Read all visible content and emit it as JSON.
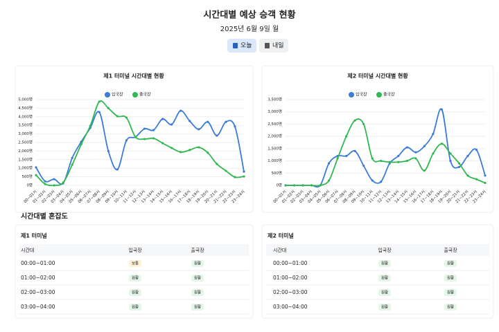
{
  "header": {
    "title": "시간대별 예상 승객 현황",
    "date": "2025년 6월 9일 월",
    "buttons": [
      "오늘",
      "내일"
    ]
  },
  "chart_data": [
    {
      "type": "line",
      "title": "제1 터미널 시간대별 현황",
      "categories": [
        "00~01시",
        "01~02시",
        "02~03시",
        "03~04시",
        "04~05시",
        "05~06시",
        "06~07시",
        "07~08시",
        "08~09시",
        "09~10시",
        "10~11시",
        "11~12시",
        "12~13시",
        "13~14시",
        "14~15시",
        "15~16시",
        "16~17시",
        "17~18시",
        "18~19시",
        "19~20시",
        "20~21시",
        "21~22시",
        "22~23시",
        "23~24시"
      ],
      "series": [
        {
          "name": "입국장",
          "color": "#3a7bd5",
          "values": [
            1050,
            240,
            360,
            120,
            1600,
            2540,
            3350,
            4270,
            2000,
            930,
            2620,
            2820,
            3300,
            3220,
            3870,
            3550,
            4350,
            3750,
            3270,
            3700,
            2900,
            3700,
            3430,
            800
          ]
        },
        {
          "name": "출국장",
          "color": "#2fb84f",
          "values": [
            600,
            80,
            0,
            160,
            1200,
            2400,
            3470,
            4880,
            4500,
            4030,
            3950,
            2820,
            2700,
            2740,
            2460,
            2180,
            1940,
            2060,
            2220,
            1900,
            1250,
            850,
            480,
            520
          ]
        }
      ],
      "ylim": [
        0,
        5000
      ],
      "yticks": [
        {
          "value": 0,
          "label": "0명"
        },
        {
          "value": 500,
          "label": "500명"
        },
        {
          "value": 1000,
          "label": "1,000명"
        },
        {
          "value": 1500,
          "label": "1,500명"
        },
        {
          "value": 2000,
          "label": "2,000명"
        },
        {
          "value": 2500,
          "label": "2,500명"
        },
        {
          "value": 3000,
          "label": "3,000명"
        },
        {
          "value": 3500,
          "label": "3,500명"
        },
        {
          "value": 4000,
          "label": "4,000명"
        },
        {
          "value": 4500,
          "label": "4,500명"
        },
        {
          "value": 5000,
          "label": "5,000명"
        }
      ],
      "grid": true
    },
    {
      "type": "line",
      "title": "제2 터미널 시간대별 현황",
      "categories": [
        "00~01시",
        "01~02시",
        "02~03시",
        "03~04시",
        "04~05시",
        "05~06시",
        "06~07시",
        "07~08시",
        "08~09시",
        "09~10시",
        "10~11시",
        "11~12시",
        "12~13시",
        "13~14시",
        "14~15시",
        "15~16시",
        "16~17시",
        "17~18시",
        "18~19시",
        "19~20시",
        "20~21시",
        "21~22시",
        "22~23시",
        "23~24시"
      ],
      "series": [
        {
          "name": "입국장",
          "color": "#3a7bd5",
          "values": [
            0,
            0,
            0,
            0,
            0,
            900,
            1200,
            1200,
            1400,
            800,
            200,
            150,
            900,
            1200,
            1550,
            1350,
            1600,
            2100,
            3100,
            1000,
            750,
            1200,
            1450,
            400
          ]
        },
        {
          "name": "출국장",
          "color": "#2fb84f",
          "values": [
            0,
            0,
            0,
            0,
            0,
            200,
            1100,
            2000,
            2650,
            2500,
            1100,
            1000,
            950,
            950,
            1000,
            1100,
            600,
            1300,
            1700,
            1300,
            900,
            400,
            250,
            100
          ]
        }
      ],
      "ylim": [
        0,
        3500
      ],
      "yticks": [
        {
          "value": 0,
          "label": "0명"
        },
        {
          "value": 500,
          "label": "500명"
        },
        {
          "value": 1000,
          "label": "1,000명"
        },
        {
          "value": 1500,
          "label": "1,500명"
        },
        {
          "value": 2000,
          "label": "2,000명"
        },
        {
          "value": 2500,
          "label": "2,500명"
        },
        {
          "value": 3000,
          "label": "3,000명"
        },
        {
          "value": 3500,
          "label": "3,500명"
        }
      ],
      "grid": true
    }
  ],
  "congestion": {
    "title": "시간대별 혼잡도",
    "terminals": [
      {
        "name": "제1 터미널",
        "columns": [
          "시간대",
          "입국장",
          "출국장"
        ],
        "rows": [
          {
            "time": "00:00~01:00",
            "arrival": {
              "label": "보통",
              "color": "#c77d0a",
              "background": "#fdf0d5"
            },
            "departure": {
              "label": "원활",
              "color": "#2f9e44",
              "background": "#e3f6e7"
            }
          },
          {
            "time": "01:00~02:00",
            "arrival": {
              "label": "원활",
              "color": "#2f9e44",
              "background": "#e3f6e7"
            },
            "departure": {
              "label": "원활",
              "color": "#2f9e44",
              "background": "#e3f6e7"
            }
          },
          {
            "time": "02:00~03:00",
            "arrival": {
              "label": "원활",
              "color": "#2f9e44",
              "background": "#e3f6e7"
            },
            "departure": {
              "label": "원활",
              "color": "#2f9e44",
              "background": "#e3f6e7"
            }
          },
          {
            "time": "03:00~04:00",
            "arrival": {
              "label": "원활",
              "color": "#2f9e44",
              "background": "#e3f6e7"
            },
            "departure": {
              "label": "원활",
              "color": "#2f9e44",
              "background": "#e3f6e7"
            }
          }
        ]
      },
      {
        "name": "제2 터미널",
        "columns": [
          "시간대",
          "입국장",
          "출국장"
        ],
        "rows": [
          {
            "time": "00:00~01:00",
            "arrival": {
              "label": "원활",
              "color": "#2f9e44",
              "background": "#e3f6e7"
            },
            "departure": {
              "label": "원활",
              "color": "#2f9e44",
              "background": "#e3f6e7"
            }
          },
          {
            "time": "01:00~02:00",
            "arrival": {
              "label": "원활",
              "color": "#2f9e44",
              "background": "#e3f6e7"
            },
            "departure": {
              "label": "원활",
              "color": "#2f9e44",
              "background": "#e3f6e7"
            }
          },
          {
            "time": "02:00~03:00",
            "arrival": {
              "label": "원활",
              "color": "#2f9e44",
              "background": "#e3f6e7"
            },
            "departure": {
              "label": "원활",
              "color": "#2f9e44",
              "background": "#e3f6e7"
            }
          },
          {
            "time": "03:00~04:00",
            "arrival": {
              "label": "원활",
              "color": "#2f9e44",
              "background": "#e3f6e7"
            },
            "departure": {
              "label": "원활",
              "color": "#2f9e44",
              "background": "#e3f6e7"
            }
          }
        ]
      }
    ]
  }
}
